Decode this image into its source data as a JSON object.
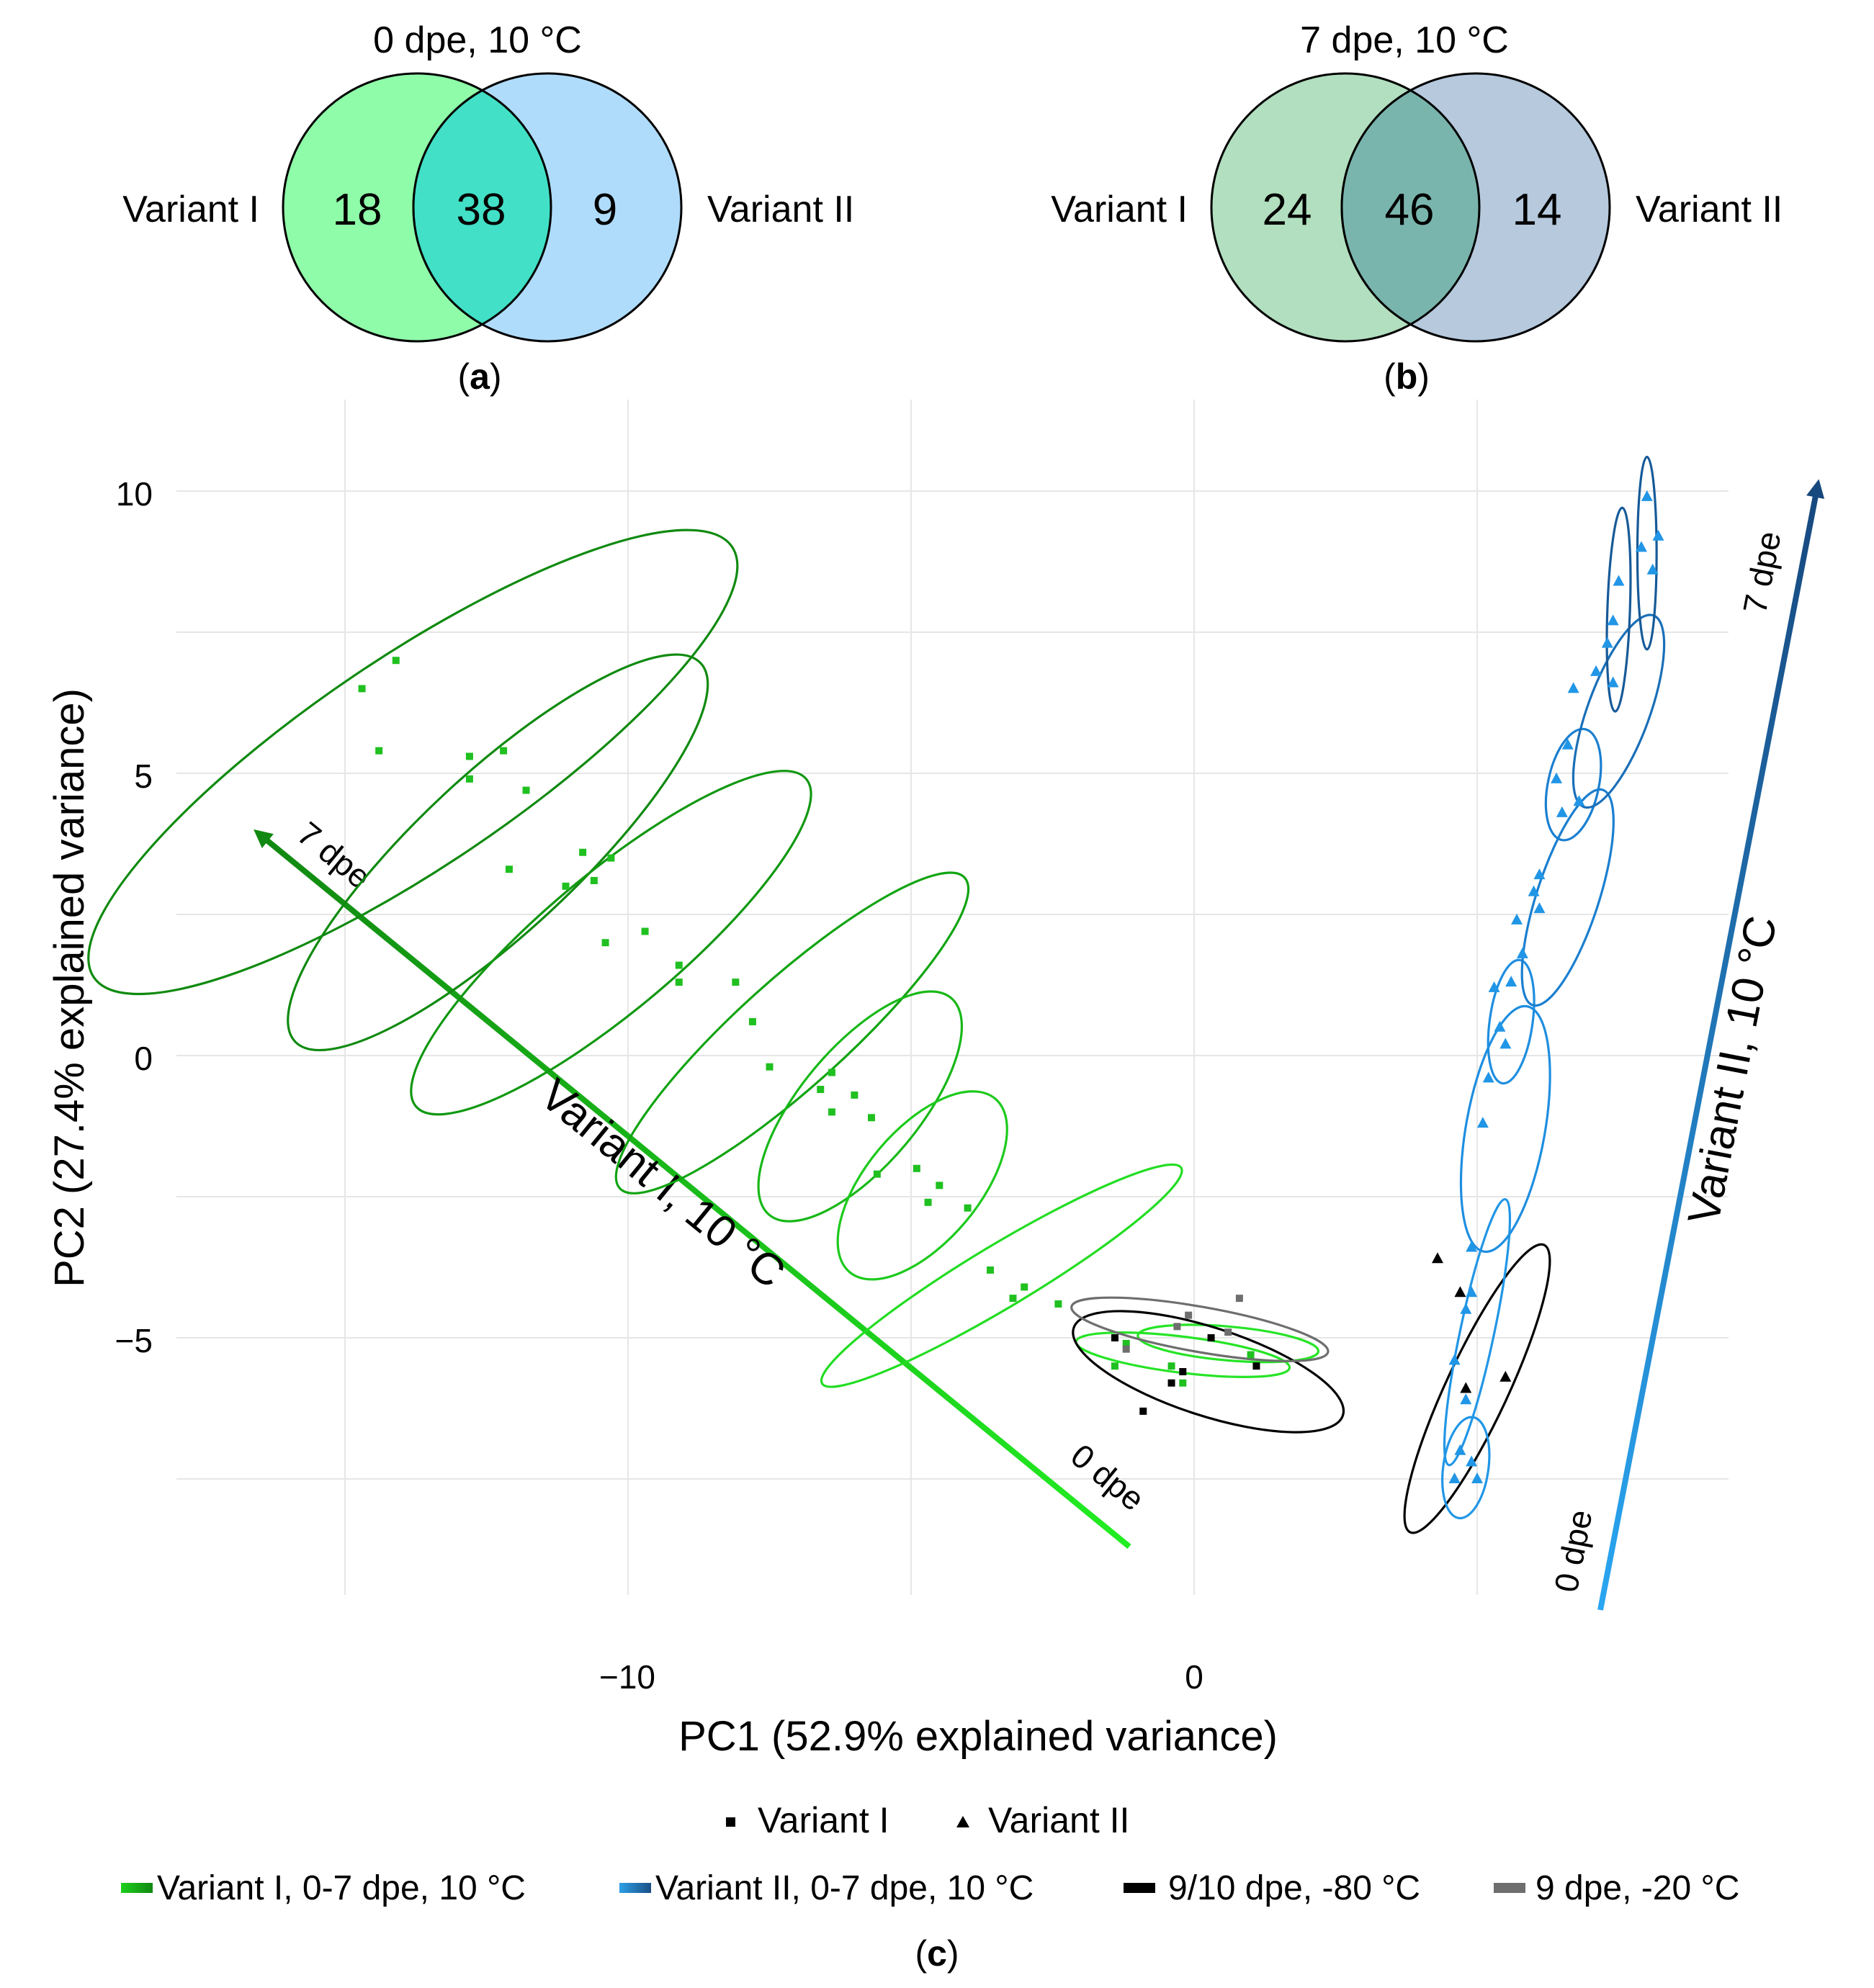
{
  "chart_data": [
    {
      "type": "venn",
      "panel": "a",
      "title": "0 dpe, 10 °C",
      "sets": [
        {
          "name": "Variant I",
          "only": 18,
          "color": "#8ffca9"
        },
        {
          "name": "Variant II",
          "only": 9,
          "color": "#b0dcfb"
        }
      ],
      "intersection": 38,
      "intersection_color": "#42e0c6",
      "caption": "a"
    },
    {
      "type": "venn",
      "panel": "b",
      "title": "7 dpe, 10 °C",
      "sets": [
        {
          "name": "Variant I",
          "only": 24,
          "color": "#b2dfbf"
        },
        {
          "name": "Variant II",
          "only": 14,
          "color": "#b6c9dd"
        }
      ],
      "intersection": 46,
      "intersection_color": "#7ab5ad",
      "caption": "b"
    },
    {
      "type": "scatter",
      "panel": "c",
      "xlabel": "PC1 (52.9% explained variance)",
      "ylabel": "PC2 (27.4% explained variance)",
      "xlim": [
        -19.2,
        9.5
      ],
      "ylim": [
        -10.2,
        11.5
      ],
      "xticks": [
        -10,
        0
      ],
      "xtick_labels": [
        "−10",
        "0"
      ],
      "yticks": [
        10,
        5,
        0,
        -5
      ],
      "ytick_labels": [
        "10",
        "5",
        "0",
        "−5"
      ],
      "x_gridlines": [
        -15,
        -10,
        -5,
        0,
        5
      ],
      "y_gridlines": [
        10,
        7.5,
        5,
        2.5,
        0,
        -2.5,
        -5,
        -7.5
      ],
      "caption": "c",
      "marker_legend": [
        {
          "marker": "square",
          "label": "Variant I"
        },
        {
          "marker": "triangle",
          "label": "Variant II"
        }
      ],
      "color_legend": [
        {
          "label": "Variant I, 0-7 dpe, 10 °C",
          "from": "#1dcf1d",
          "to": "#118811"
        },
        {
          "label": "Variant II, 0-7 dpe, 10 °C",
          "from": "#2c9fe6",
          "to": "#1a4e86"
        },
        {
          "label": "9/10 dpe, -80 °C",
          "from": "#000000",
          "to": "#000000"
        },
        {
          "label": "9 dpe, -20 °C",
          "from": "#6e6e6e",
          "to": "#6e6e6e"
        }
      ],
      "trend_arrows": [
        {
          "label": "Variant I, 10 °C",
          "start_label": "0 dpe",
          "end_label": "7 dpe",
          "from": [
            -1.2,
            -8.5
          ],
          "to": [
            -16.6,
            4.2
          ],
          "color_start": "#22ee22",
          "color_end": "#118811"
        },
        {
          "label": "Variant II, 10 °C",
          "start_label": "0 dpe",
          "end_label": "7 dpe",
          "from": [
            7.1,
            -9.7
          ],
          "to": [
            10.9,
            10.2
          ],
          "color_start": "#2aa6f2",
          "color_end": "#17487e"
        }
      ],
      "ellipses": [
        {
          "cx": -13.8,
          "cy": 5.2,
          "rx": 6.8,
          "ry": 1.85,
          "angle_deg": -34,
          "color": "#108a10"
        },
        {
          "cx": -12.3,
          "cy": 3.6,
          "rx": 4.9,
          "ry": 1.4,
          "angle_deg": -43,
          "color": "#108a10"
        },
        {
          "cx": -10.3,
          "cy": 2.0,
          "rx": 4.5,
          "ry": 1.2,
          "angle_deg": -40,
          "color": "#119811"
        },
        {
          "cx": -7.1,
          "cy": 0.4,
          "rx": 4.1,
          "ry": 0.95,
          "angle_deg": -42,
          "color": "#12a412"
        },
        {
          "cx": -5.9,
          "cy": -0.9,
          "rx": 2.5,
          "ry": 1.05,
          "angle_deg": -50,
          "color": "#18b818"
        },
        {
          "cx": -4.8,
          "cy": -2.3,
          "rx": 2.0,
          "ry": 1.0,
          "angle_deg": -50,
          "color": "#1dca1d"
        },
        {
          "cx": -3.4,
          "cy": -3.9,
          "rx": 3.7,
          "ry": 0.55,
          "angle_deg": -31,
          "color": "#22dd22"
        },
        {
          "cx": -0.2,
          "cy": -5.3,
          "rx": 1.9,
          "ry": 0.32,
          "angle_deg": 7,
          "color": "#26e426"
        },
        {
          "cx": 0.6,
          "cy": -5.1,
          "rx": 1.6,
          "ry": 0.3,
          "angle_deg": 5,
          "color": "#26e426"
        },
        {
          "cx": 0.25,
          "cy": -5.6,
          "rx": 2.5,
          "ry": 0.78,
          "angle_deg": 18,
          "color": "#000000"
        },
        {
          "cx": 0.1,
          "cy": -4.85,
          "rx": 2.3,
          "ry": 0.4,
          "angle_deg": 10,
          "color": "#6e6e6e"
        },
        {
          "cx": 5.0,
          "cy": -5.9,
          "rx": 2.8,
          "ry": 0.55,
          "angle_deg": -65,
          "color": "#000000"
        },
        {
          "cx": 4.8,
          "cy": -7.3,
          "rx": 0.9,
          "ry": 0.4,
          "angle_deg": -82,
          "color": "#2196e6"
        },
        {
          "cx": 5.0,
          "cy": -4.9,
          "rx": 2.4,
          "ry": 0.3,
          "angle_deg": -78,
          "color": "#2196e6"
        },
        {
          "cx": 5.5,
          "cy": -1.3,
          "rx": 2.2,
          "ry": 0.7,
          "angle_deg": -80,
          "color": "#1e8ee0"
        },
        {
          "cx": 5.6,
          "cy": 0.6,
          "rx": 1.1,
          "ry": 0.38,
          "angle_deg": -82,
          "color": "#1e8ee0"
        },
        {
          "cx": 6.6,
          "cy": 2.8,
          "rx": 2.0,
          "ry": 0.55,
          "angle_deg": -72,
          "color": "#1a7fd0"
        },
        {
          "cx": 6.7,
          "cy": 4.8,
          "rx": 1.0,
          "ry": 0.45,
          "angle_deg": -78,
          "color": "#1a7fd0"
        },
        {
          "cx": 7.5,
          "cy": 6.1,
          "rx": 1.8,
          "ry": 0.55,
          "angle_deg": -70,
          "color": "#1a6fb8"
        },
        {
          "cx": 7.5,
          "cy": 7.9,
          "rx": 1.8,
          "ry": 0.2,
          "angle_deg": -88,
          "color": "#165a98"
        },
        {
          "cx": 8.0,
          "cy": 8.9,
          "rx": 1.7,
          "ry": 0.17,
          "angle_deg": -90,
          "color": "#165a98"
        }
      ],
      "series": [
        {
          "name": "Variant I, 10 °C",
          "marker": "square",
          "color": "#20c020",
          "points": [
            [
              -14.7,
              6.5
            ],
            [
              -14.1,
              7.0
            ],
            [
              -14.4,
              5.4
            ],
            [
              -12.8,
              5.3
            ],
            [
              -12.2,
              5.4
            ],
            [
              -12.8,
              4.9
            ],
            [
              -11.8,
              4.7
            ],
            [
              -12.1,
              3.3
            ],
            [
              -10.8,
              3.6
            ],
            [
              -11.1,
              3.0
            ],
            [
              -10.6,
              3.1
            ],
            [
              -10.3,
              3.5
            ],
            [
              -10.4,
              2.0
            ],
            [
              -9.7,
              2.2
            ],
            [
              -9.1,
              1.6
            ],
            [
              -9.1,
              1.3
            ],
            [
              -8.1,
              1.3
            ],
            [
              -7.8,
              0.6
            ],
            [
              -7.5,
              -0.2
            ],
            [
              -6.4,
              -0.3
            ],
            [
              -6.6,
              -0.6
            ],
            [
              -6.0,
              -0.7
            ],
            [
              -6.4,
              -1.0
            ],
            [
              -5.7,
              -1.1
            ],
            [
              -5.6,
              -2.1
            ],
            [
              -4.9,
              -2.0
            ],
            [
              -4.7,
              -2.6
            ],
            [
              -4.5,
              -2.3
            ],
            [
              -4.0,
              -2.7
            ],
            [
              -3.6,
              -3.8
            ],
            [
              -3.0,
              -4.1
            ],
            [
              -3.2,
              -4.3
            ],
            [
              -2.4,
              -4.4
            ],
            [
              -1.2,
              -5.1
            ],
            [
              -1.4,
              -5.5
            ],
            [
              -0.4,
              -5.5
            ],
            [
              -0.2,
              -5.8
            ],
            [
              1.0,
              -5.3
            ]
          ]
        },
        {
          "name": "Variant II, 10 °C",
          "marker": "triangle",
          "color": "#2196e6",
          "points": [
            [
              8.0,
              9.9
            ],
            [
              8.2,
              9.2
            ],
            [
              7.9,
              9.0
            ],
            [
              8.1,
              8.6
            ],
            [
              7.5,
              8.4
            ],
            [
              7.4,
              7.7
            ],
            [
              7.3,
              7.3
            ],
            [
              7.1,
              6.8
            ],
            [
              7.4,
              6.6
            ],
            [
              6.7,
              6.5
            ],
            [
              6.6,
              5.5
            ],
            [
              6.4,
              4.9
            ],
            [
              6.5,
              4.3
            ],
            [
              6.8,
              4.5
            ],
            [
              6.1,
              3.2
            ],
            [
              6.0,
              2.9
            ],
            [
              5.7,
              2.4
            ],
            [
              6.1,
              2.6
            ],
            [
              5.8,
              1.8
            ],
            [
              5.3,
              1.2
            ],
            [
              5.6,
              1.3
            ],
            [
              5.4,
              0.5
            ],
            [
              5.5,
              0.2
            ],
            [
              5.2,
              -0.4
            ],
            [
              5.1,
              -1.2
            ],
            [
              4.9,
              -3.4
            ],
            [
              4.9,
              -4.2
            ],
            [
              4.8,
              -4.5
            ],
            [
              4.6,
              -5.4
            ],
            [
              4.8,
              -6.1
            ],
            [
              4.7,
              -7.0
            ],
            [
              4.9,
              -7.2
            ],
            [
              5.0,
              -7.5
            ],
            [
              4.6,
              -7.5
            ]
          ]
        },
        {
          "name": "9/10 dpe, -80 °C, Variant I",
          "marker": "square",
          "color": "#000000",
          "points": [
            [
              -1.4,
              -5.0
            ],
            [
              -0.9,
              -6.3
            ],
            [
              -0.4,
              -5.8
            ],
            [
              0.3,
              -5.0
            ],
            [
              1.1,
              -5.5
            ],
            [
              -0.2,
              -5.6
            ]
          ]
        },
        {
          "name": "9/10 dpe, -80 °C, Variant II",
          "marker": "triangle",
          "color": "#000000",
          "points": [
            [
              4.3,
              -3.6
            ],
            [
              4.7,
              -4.2
            ],
            [
              4.8,
              -5.9
            ],
            [
              5.5,
              -5.7
            ]
          ]
        },
        {
          "name": "9 dpe, -20 °C",
          "marker": "square",
          "color": "#6e6e6e",
          "points": [
            [
              -1.2,
              -5.2
            ],
            [
              -0.3,
              -4.8
            ],
            [
              -0.1,
              -4.6
            ],
            [
              0.6,
              -4.9
            ],
            [
              0.8,
              -4.3
            ]
          ]
        }
      ]
    }
  ]
}
